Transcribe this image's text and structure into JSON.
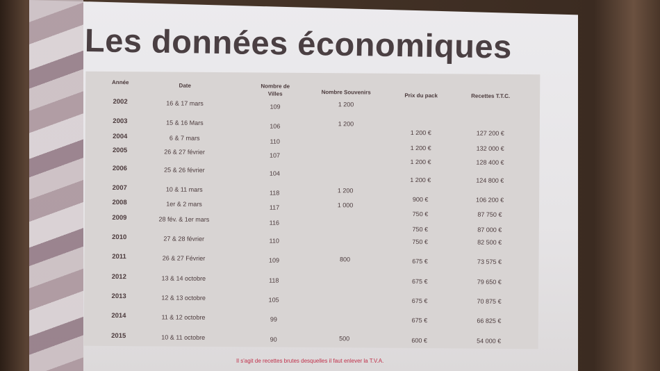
{
  "title": "Les données économiques",
  "table": {
    "headers": [
      "Année",
      "Date",
      "Nombre de Villes",
      "Nombre Souvenirs",
      "Prix du pack",
      "Recettes T.T.C."
    ],
    "rows": [
      [
        "2002",
        "16 & 17 mars",
        "109",
        "1 200",
        "",
        ""
      ],
      [
        "2003",
        "15 & 16 Mars",
        "106",
        "1 200",
        "1 200 €",
        "127 200 €"
      ],
      [
        "2004",
        "6 & 7 mars",
        "110",
        "",
        "1 200 €",
        "132 000 €"
      ],
      [
        "2005",
        "26 & 27 février",
        "107",
        "",
        "1 200 €",
        "128 400 €"
      ],
      [
        "2006",
        "25 & 26 février",
        "104",
        "",
        "1 200 €",
        "124 800 €"
      ],
      [
        "2007",
        "10 & 11 mars",
        "118",
        "1 200",
        "900 €",
        "106 200 €"
      ],
      [
        "2008",
        "1er & 2 mars",
        "117",
        "1 000",
        "750 €",
        "87 750 €"
      ],
      [
        "2009",
        "28 fév. & 1er mars",
        "116",
        "",
        "750 €",
        "87 000 €"
      ],
      [
        "2010",
        "27 & 28 février",
        "110",
        "",
        "750 €",
        "82 500 €"
      ],
      [
        "2011",
        "26 & 27 Février",
        "109",
        "800",
        "675 €",
        "73 575 €"
      ],
      [
        "2012",
        "13 & 14 octobre",
        "118",
        "",
        "675 €",
        "79 650 €"
      ],
      [
        "2013",
        "12 & 13 octobre",
        "105",
        "",
        "675 €",
        "70 875 €"
      ],
      [
        "2014",
        "11 & 12 octobre",
        "99",
        "",
        "675 €",
        "66 825 €"
      ],
      [
        "2015",
        "10 & 11 octobre",
        "90",
        "500",
        "600 €",
        "54 000 €"
      ]
    ]
  },
  "footnote": "Il s'agit de recettes brutes desquelles il faut enlever la T.V.A."
}
